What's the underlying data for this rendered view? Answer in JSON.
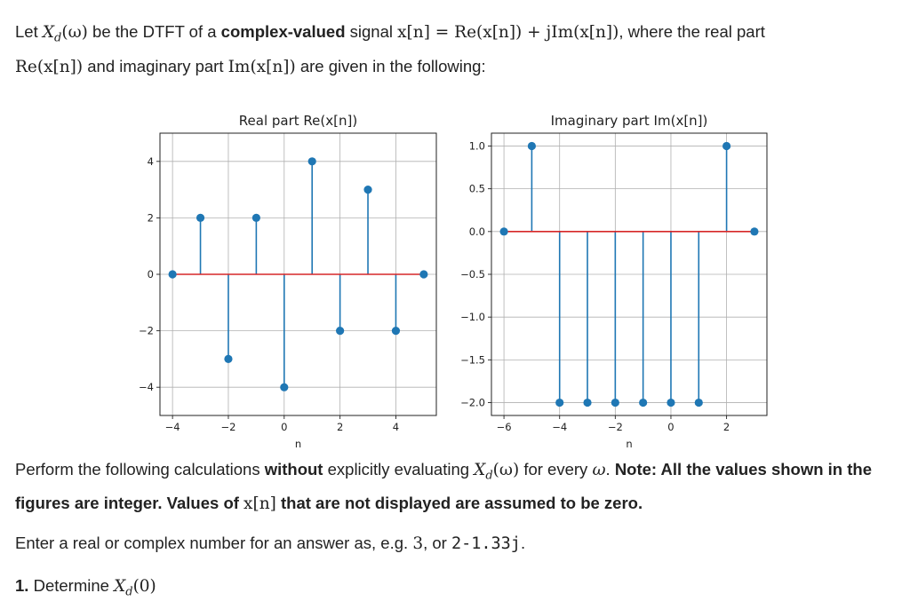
{
  "intro": {
    "p1": "Let ",
    "X": "X",
    "d": "d",
    "omega_arg": "(ω)",
    "p2": " be the DTFT of a ",
    "bold": "complex-valued",
    "p3": " signal ",
    "xeq": "x[n] = Re(x[n]) + jIm(x[n])",
    "p4": ", where the real part",
    "re": "Re(x[n])",
    "p5": " and imaginary part ",
    "im": "Im(x[n])",
    "p6": " are given in the following:"
  },
  "perform": {
    "p1": "Perform the following calculations ",
    "bold1": "without",
    "p2": " explicitly evaluating ",
    "X": "X",
    "d": "d",
    "omega_arg": "(ω)",
    "p3": " for every ",
    "omega": "ω",
    "p4": ". ",
    "note1": "Note: All the values shown in the figures are integer. Values of ",
    "xn": "x[n]",
    "note2": " that are not displayed are assumed to be zero."
  },
  "enter": {
    "p1": "Enter a real or complex number for an answer as, e.g. ",
    "ex1": "3",
    "p2": ", or ",
    "ex2": "2-1.33j",
    "p3": "."
  },
  "question": {
    "num": "1.",
    "p1": " Determine ",
    "X": "X",
    "d": "d",
    "arg": "(0)"
  },
  "colors": {
    "stem": "#1f77b4",
    "baseline": "#d62728"
  },
  "chart_data": [
    {
      "type": "stem",
      "title": "Real part Re(x[n])",
      "xlabel": "n",
      "ylabel": "",
      "x": [
        -4,
        -3,
        -2,
        -1,
        0,
        1,
        2,
        3,
        4,
        5
      ],
      "y": [
        0,
        2,
        -3,
        2,
        -4,
        4,
        -2,
        3,
        -2,
        0
      ],
      "xlim": [
        -4.45,
        5.45
      ],
      "ylim": [
        -5,
        5
      ],
      "xticks": [
        -4,
        -2,
        0,
        2,
        4
      ],
      "xtick_labels": [
        "−4",
        "−2",
        "0",
        "2",
        "4"
      ],
      "yticks": [
        4,
        2,
        0,
        -2,
        -4
      ],
      "ytick_labels": [
        "4",
        "2",
        "0",
        "−2",
        "−4"
      ],
      "grid": true
    },
    {
      "type": "stem",
      "title": "Imaginary part Im(x[n])",
      "xlabel": "n",
      "ylabel": "",
      "x": [
        -6,
        -5,
        -4,
        -3,
        -2,
        -1,
        0,
        1,
        2,
        3
      ],
      "y": [
        0,
        1,
        -2,
        -2,
        -2,
        -2,
        -2,
        -2,
        1,
        0
      ],
      "xlim": [
        -6.45,
        3.45
      ],
      "ylim": [
        -2.15,
        1.15
      ],
      "xticks": [
        -6,
        -4,
        -2,
        0,
        2
      ],
      "xtick_labels": [
        "−6",
        "−4",
        "−2",
        "0",
        "2"
      ],
      "yticks": [
        1.0,
        0.5,
        0.0,
        -0.5,
        -1.0,
        -1.5,
        -2.0
      ],
      "ytick_labels": [
        "1.0",
        "0.5",
        "0.0",
        "−0.5",
        "−1.0",
        "−1.5",
        "−2.0"
      ],
      "grid": true
    }
  ]
}
